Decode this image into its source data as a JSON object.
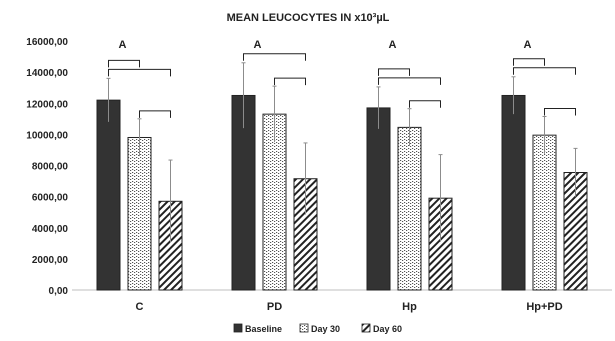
{
  "chart_data": {
    "type": "bar",
    "title": "MEAN LEUCOCYTES IN x10³µL",
    "xlabel": "",
    "ylabel": "",
    "ylim": [
      0,
      16000
    ],
    "yticks": [
      0,
      2000,
      4000,
      6000,
      8000,
      10000,
      12000,
      14000,
      16000
    ],
    "ytick_labels": [
      "0,00",
      "2000,00",
      "4000,00",
      "6000,00",
      "8000,00",
      "10000,00",
      "12000,00",
      "14000,00",
      "16000,00"
    ],
    "categories": [
      "C",
      "PD",
      "Hp",
      "Hp+PD"
    ],
    "group_annotations": [
      "A",
      "A",
      "A",
      "A"
    ],
    "grid": false,
    "legend_position": "bottom",
    "series": [
      {
        "name": "Baseline",
        "values": [
          12200,
          12500,
          11700,
          12500
        ],
        "errors": [
          1400,
          2100,
          1350,
          1200
        ],
        "pattern": "solid-dark"
      },
      {
        "name": "Day 30",
        "values": [
          9800,
          11300,
          10450,
          9950
        ],
        "errors": [
          1200,
          1800,
          1200,
          1200
        ],
        "pattern": "dotted"
      },
      {
        "name": "Day 60",
        "values": [
          5700,
          7150,
          5900,
          7550
        ],
        "errors": [
          2650,
          2300,
          2800,
          1550
        ],
        "pattern": "diagonal"
      }
    ],
    "significance_brackets": [
      {
        "group": 0,
        "from": 0,
        "to": 1
      },
      {
        "group": 0,
        "from": 0,
        "to": 2
      },
      {
        "group": 0,
        "from": 1,
        "to": 2
      },
      {
        "group": 1,
        "from": 0,
        "to": 2
      },
      {
        "group": 1,
        "from": 1,
        "to": 2
      },
      {
        "group": 2,
        "from": 0,
        "to": 1
      },
      {
        "group": 2,
        "from": 0,
        "to": 2
      },
      {
        "group": 2,
        "from": 1,
        "to": 2
      },
      {
        "group": 3,
        "from": 0,
        "to": 1
      },
      {
        "group": 3,
        "from": 0,
        "to": 2
      },
      {
        "group": 3,
        "from": 1,
        "to": 2
      }
    ]
  }
}
